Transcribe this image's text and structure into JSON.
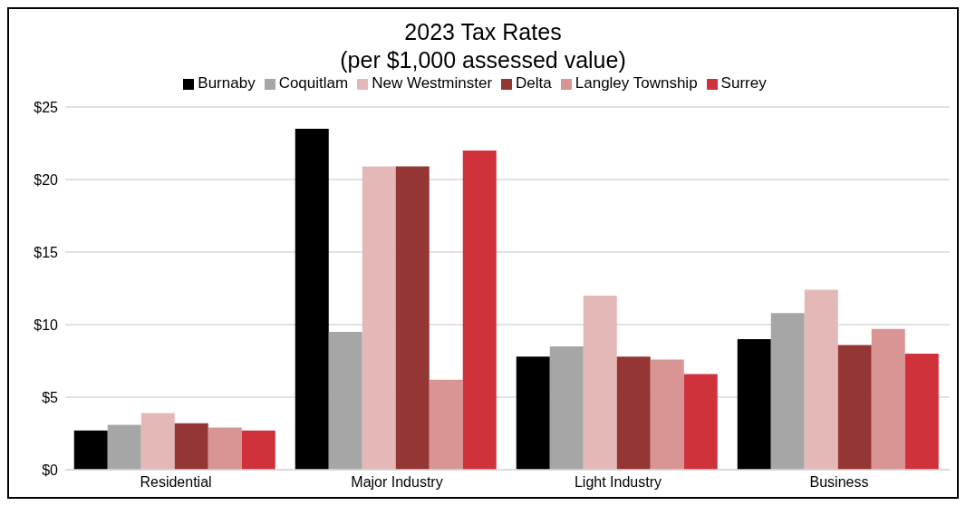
{
  "chart_data": {
    "type": "bar",
    "title": "2023 Tax Rates",
    "subtitle": "(per $1,000 assessed value)",
    "categories": [
      "Residential",
      "Major Industry",
      "Light Industry",
      "Business"
    ],
    "series": [
      {
        "name": "Burnaby",
        "color": "#000000",
        "values": [
          2.7,
          23.5,
          7.8,
          9.0
        ]
      },
      {
        "name": "Coquitlam",
        "color": "#a6a6a6",
        "values": [
          3.1,
          9.5,
          8.5,
          10.8
        ]
      },
      {
        "name": "New Westminster",
        "color": "#e5b8b8",
        "values": [
          3.9,
          20.9,
          12.0,
          12.4
        ]
      },
      {
        "name": "Delta",
        "color": "#943634",
        "values": [
          3.2,
          20.9,
          7.8,
          8.6
        ]
      },
      {
        "name": "Langley Township",
        "color": "#d99594",
        "values": [
          2.9,
          6.2,
          7.6,
          9.7
        ]
      },
      {
        "name": "Surrey",
        "color": "#d0323c",
        "values": [
          2.7,
          22.0,
          6.6,
          8.0
        ]
      }
    ],
    "ylim": [
      0,
      25
    ],
    "yticks": [
      {
        "value": 0,
        "label": "$0"
      },
      {
        "value": 5,
        "label": "$5"
      },
      {
        "value": 10,
        "label": "$10"
      },
      {
        "value": 15,
        "label": "$15"
      },
      {
        "value": 20,
        "label": "$20"
      },
      {
        "value": 25,
        "label": "$25"
      }
    ],
    "grid": "y",
    "legend": "top"
  }
}
